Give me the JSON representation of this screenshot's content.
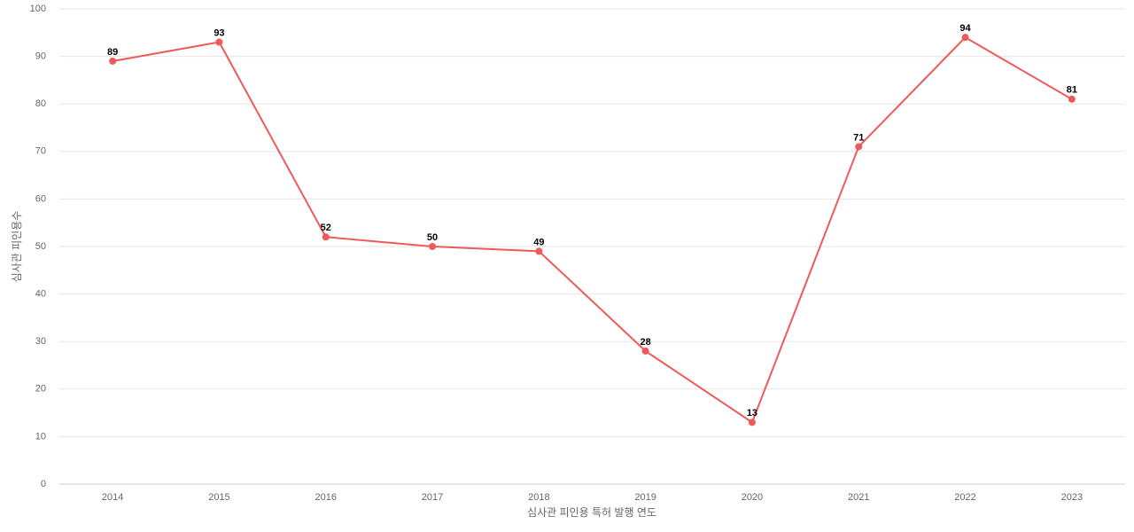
{
  "chart_data": {
    "type": "line",
    "x_label": "심사관 피인용 특허 발행 연도",
    "y_label": "심사관 피인용수",
    "categories": [
      "2014",
      "2015",
      "2016",
      "2017",
      "2018",
      "2019",
      "2020",
      "2021",
      "2022",
      "2023"
    ],
    "series": [
      {
        "color": "#ee5a5a",
        "values": [
          89,
          93,
          52,
          50,
          49,
          28,
          13,
          71,
          94,
          81
        ]
      }
    ],
    "ylim": [
      0,
      100
    ],
    "yticks": [
      0,
      10,
      20,
      30,
      40,
      50,
      60,
      70,
      80,
      90,
      100
    ],
    "grid": true
  }
}
